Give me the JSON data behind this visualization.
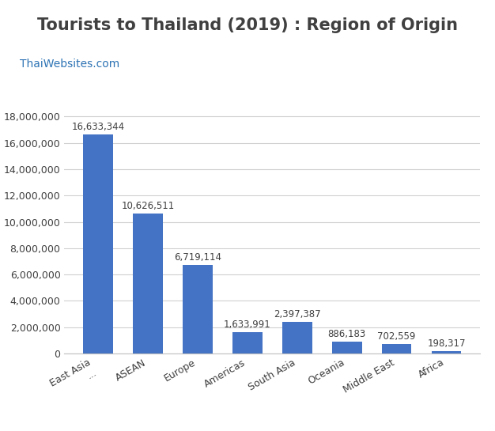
{
  "title": "Tourists to Thailand (2019) : Region of Origin",
  "subtitle": "ThaiWebsites.com",
  "categories": [
    "East Asia...",
    "ASEAN",
    "Europe",
    "Americas",
    "South Asia",
    "Oceania",
    "Middle East",
    "Africa"
  ],
  "x_labels": [
    "East Asia\n...",
    "ASEAN",
    "Europe",
    "Americas",
    "South Asia",
    "Oceania",
    "Middle East",
    "Africa"
  ],
  "values": [
    16633344,
    10626511,
    6719114,
    1633991,
    2397387,
    886183,
    702559,
    198317
  ],
  "bar_color": "#4472C4",
  "background_color": "#ffffff",
  "ylim": [
    0,
    19000000
  ],
  "yticks": [
    0,
    2000000,
    4000000,
    6000000,
    8000000,
    10000000,
    12000000,
    14000000,
    16000000,
    18000000
  ],
  "title_fontsize": 15,
  "subtitle_fontsize": 10,
  "tick_fontsize": 9,
  "value_label_fontsize": 8.5,
  "title_color": "#404040",
  "subtitle_color": "#2e74b5",
  "value_label_color": "#404040",
  "grid_color": "#d0d0d0",
  "bar_width": 0.6
}
